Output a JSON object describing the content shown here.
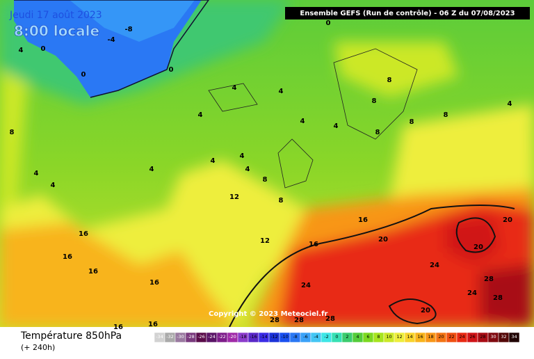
{
  "header": {
    "date": "Jeudi 17 août 2023",
    "time": "8:00 locale",
    "run": "Ensemble GEFS  (Run de contrôle)  -  06 Z du 07/08/2023"
  },
  "copyright": "Copyright © 2023 Meteociel.fr",
  "footer": {
    "title": "Température 850hPa",
    "lead": "(+ 240h)"
  },
  "colorbar": {
    "values": [
      -34,
      -32,
      -30,
      -28,
      -26,
      -24,
      -22,
      -20,
      -18,
      -16,
      -14,
      -12,
      -10,
      -8,
      -6,
      -4,
      -2,
      0,
      2,
      4,
      6,
      8,
      10,
      12,
      14,
      16,
      18,
      20,
      22,
      24,
      26,
      28,
      30,
      32,
      34
    ],
    "colors": [
      "#d2d2d2",
      "#aaaaaa",
      "#9a7aa0",
      "#7a3a7e",
      "#5a0c4a",
      "#5a1466",
      "#7e1e8a",
      "#a02aa8",
      "#8c3ccc",
      "#5a28c8",
      "#3a2ce6",
      "#1c32d8",
      "#1a50f0",
      "#2a78f4",
      "#3aa2f8",
      "#44c6f4",
      "#3ee6e6",
      "#36e0b4",
      "#3ccc6e",
      "#54cc3a",
      "#7cd820",
      "#a6e41e",
      "#cce828",
      "#eeee3c",
      "#f8d42c",
      "#f8b41c",
      "#f89618",
      "#f47414",
      "#f05012",
      "#e82a14",
      "#d01418",
      "#a80c14",
      "#800a10",
      "#540808",
      "#200404"
    ]
  },
  "contour_labels": [
    "-8",
    "-4",
    "0",
    "4",
    "0",
    "0",
    "0",
    "4",
    "4",
    "8",
    "4",
    "4",
    "4",
    "8",
    "8",
    "8",
    "8",
    "4",
    "8",
    "4",
    "4",
    "4",
    "4",
    "4",
    "4",
    "8",
    "12",
    "8",
    "16",
    "16",
    "16",
    "16",
    "12",
    "16",
    "16",
    "20",
    "20",
    "20",
    "24",
    "24",
    "28",
    "24",
    "28",
    "20",
    "28",
    "28",
    "28",
    "16",
    "16"
  ]
}
